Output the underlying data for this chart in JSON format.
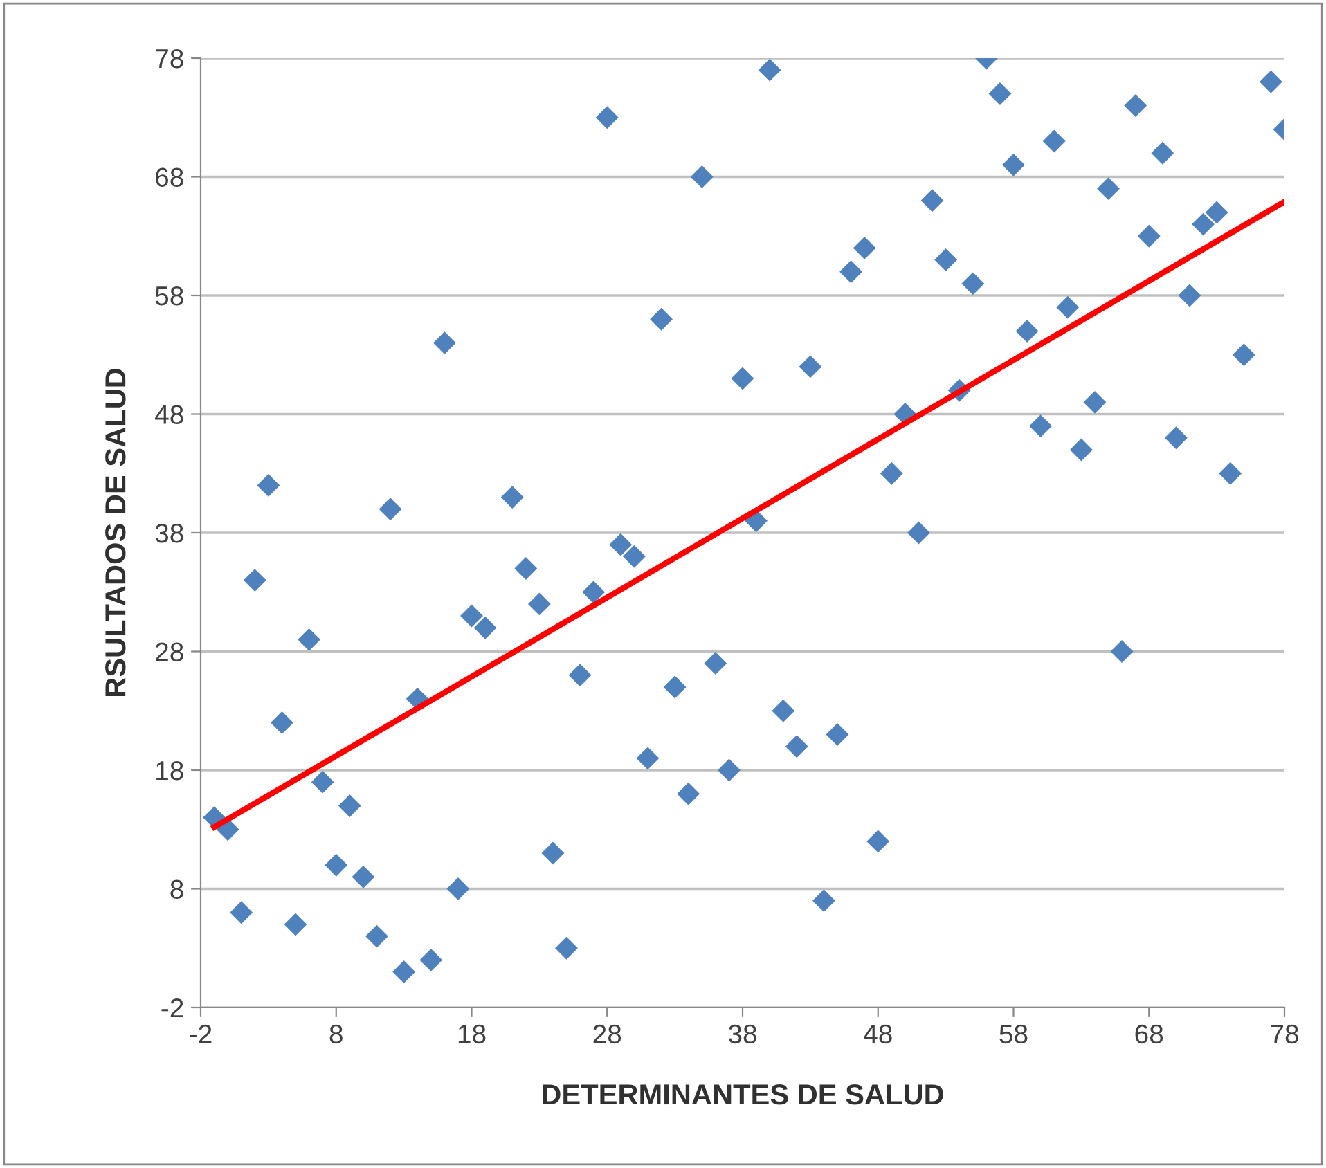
{
  "chart_data": {
    "type": "scatter",
    "xlabel": "DETERMINANTES DE SALUD",
    "ylabel": "RSULTADOS DE SALUD",
    "xlim": [
      -2,
      78
    ],
    "ylim": [
      -2,
      78
    ],
    "xticks": [
      -2,
      8,
      18,
      28,
      38,
      48,
      58,
      68,
      78
    ],
    "yticks": [
      -2,
      8,
      18,
      28,
      38,
      48,
      58,
      68,
      78
    ],
    "grid": "y",
    "marker": "diamond",
    "series": [
      {
        "color": "#4f81bd",
        "x": [
          -1,
          0,
          1,
          2,
          3,
          4,
          5,
          6,
          7,
          8,
          9,
          10,
          11,
          12,
          13,
          14,
          15,
          16,
          17,
          18,
          19,
          21,
          22,
          23,
          24,
          25,
          26,
          27,
          28,
          29,
          30,
          31,
          32,
          33,
          34,
          35,
          36,
          37,
          38,
          39,
          40,
          41,
          42,
          43,
          44,
          45,
          46,
          47,
          48,
          49,
          50,
          51,
          52,
          53,
          54,
          55,
          56,
          57,
          58,
          59,
          60,
          61,
          62,
          63,
          64,
          65,
          66,
          67,
          68,
          69,
          70,
          71,
          72,
          73,
          74,
          75,
          77,
          78
        ],
        "values": [
          14,
          13,
          6,
          34,
          42,
          22,
          5,
          29,
          17,
          10,
          15,
          9,
          4,
          40,
          1,
          24,
          2,
          54,
          8,
          31,
          30,
          41,
          35,
          32,
          11,
          3,
          26,
          33,
          73,
          37,
          36,
          19,
          56,
          25,
          16,
          68,
          27,
          18,
          51,
          39,
          77,
          23,
          20,
          52,
          7,
          21,
          60,
          62,
          12,
          43,
          48,
          38,
          66,
          61,
          50,
          59,
          78,
          75,
          69,
          55,
          47,
          71,
          57,
          45,
          49,
          67,
          28,
          74,
          63,
          70,
          46,
          58,
          64,
          65,
          43,
          53,
          76,
          72
        ]
      },
      {
        "type": "line",
        "color": "#ff0000",
        "marker": "none",
        "x": [
          -1,
          78
        ],
        "values": [
          13.2,
          65.9
        ]
      }
    ]
  }
}
